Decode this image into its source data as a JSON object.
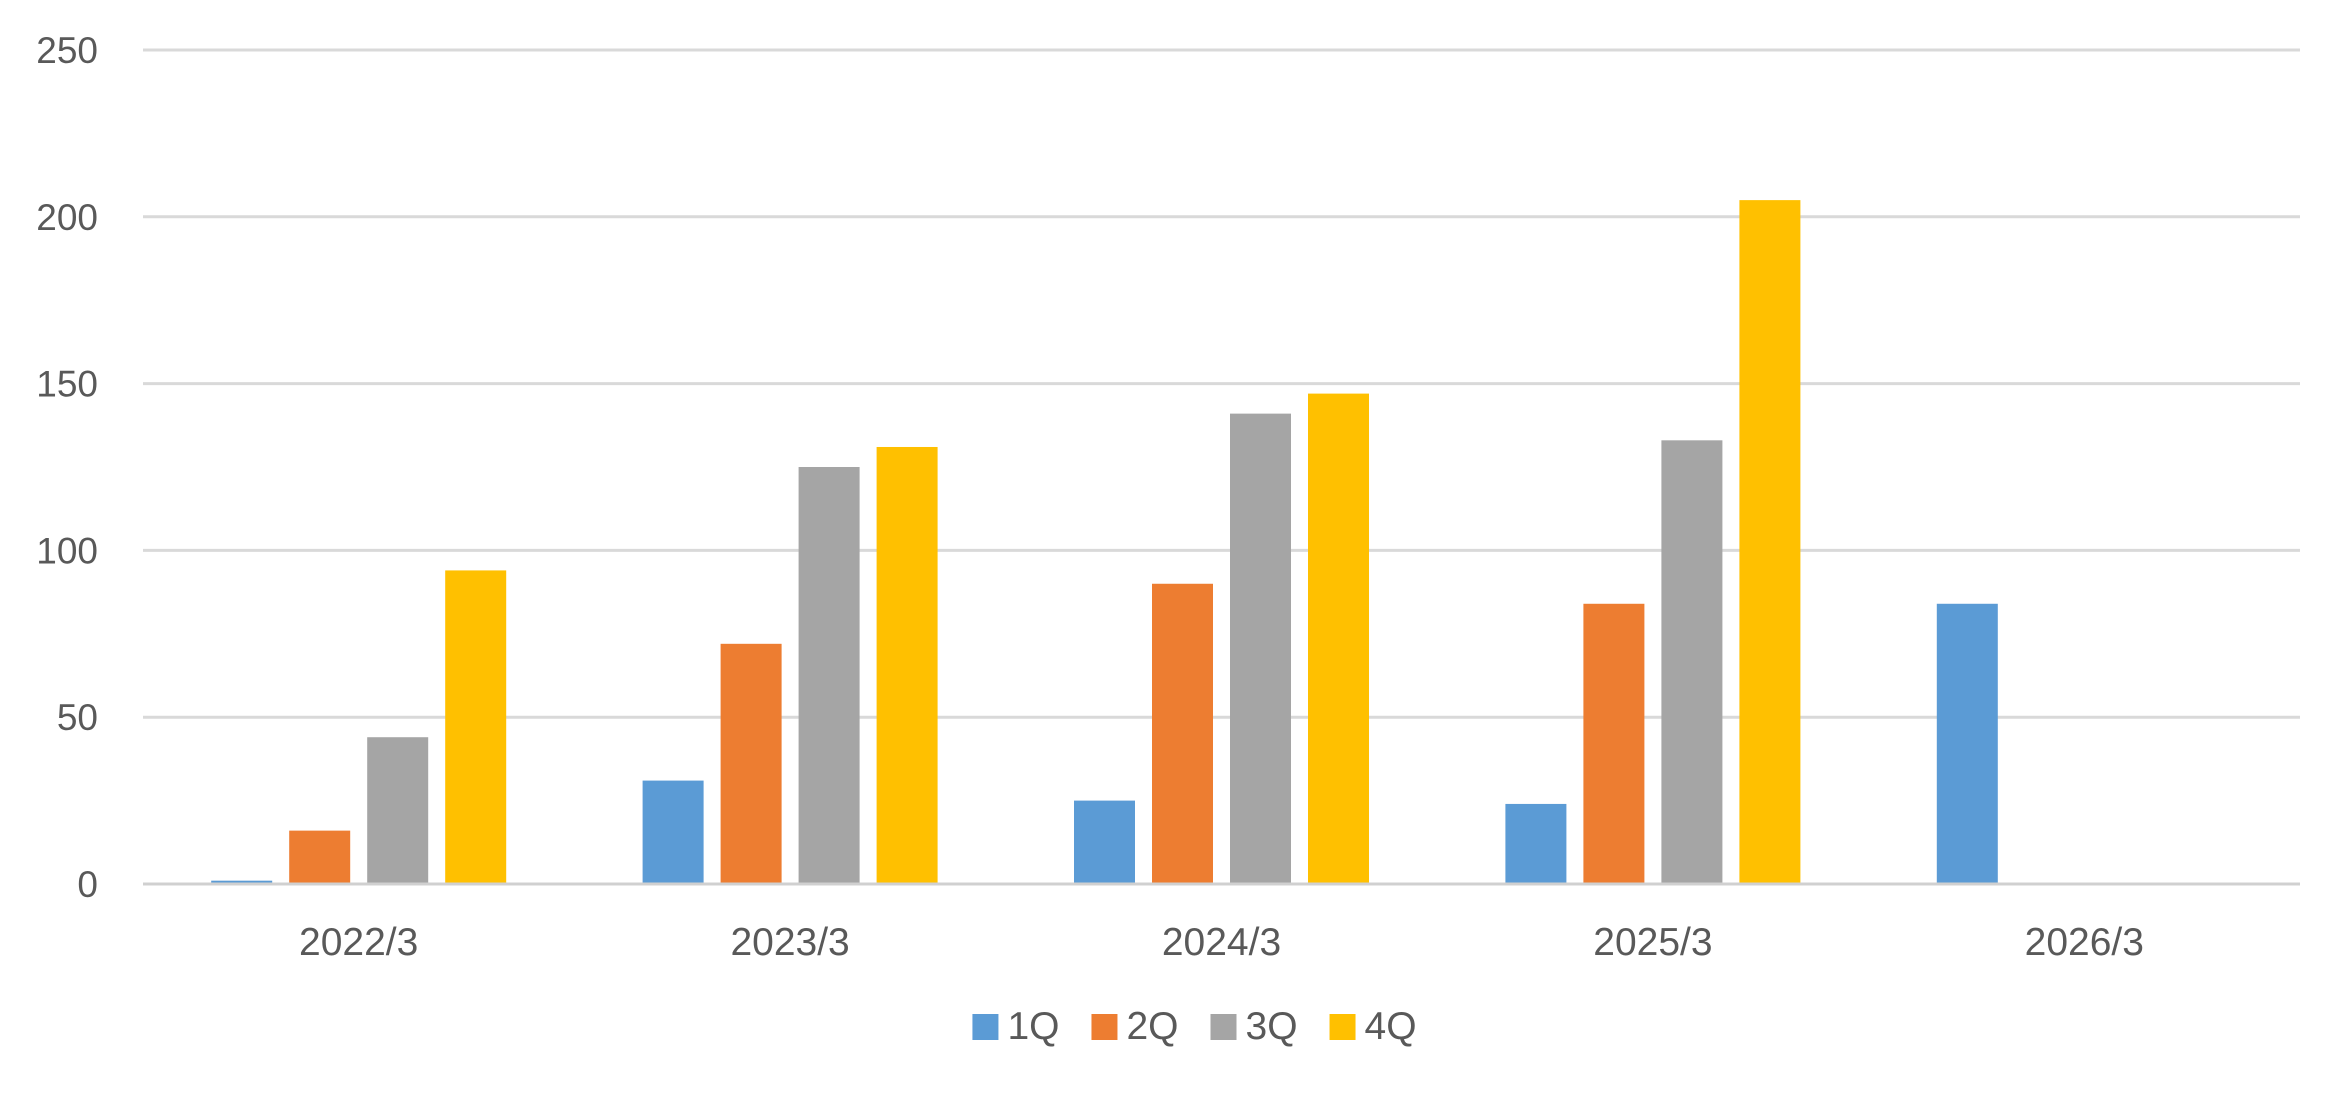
{
  "chart_data": {
    "type": "bar",
    "title": "",
    "xlabel": "",
    "ylabel": "",
    "categories": [
      "2022/3",
      "2023/3",
      "2024/3",
      "2025/3",
      "2026/3"
    ],
    "series": [
      {
        "name": "1Q",
        "color": "#5B9BD5",
        "values": [
          1,
          31,
          25,
          24,
          84
        ]
      },
      {
        "name": "2Q",
        "color": "#ED7D31",
        "values": [
          16,
          72,
          90,
          84,
          null
        ]
      },
      {
        "name": "3Q",
        "color": "#A5A5A5",
        "values": [
          44,
          125,
          141,
          133,
          null
        ]
      },
      {
        "name": "4Q",
        "color": "#FFC000",
        "values": [
          94,
          131,
          147,
          205,
          null
        ]
      }
    ],
    "ylim": [
      0,
      250
    ],
    "yticks": [
      0,
      50,
      100,
      150,
      200,
      250
    ],
    "grid": true,
    "legend_position": "bottom"
  }
}
